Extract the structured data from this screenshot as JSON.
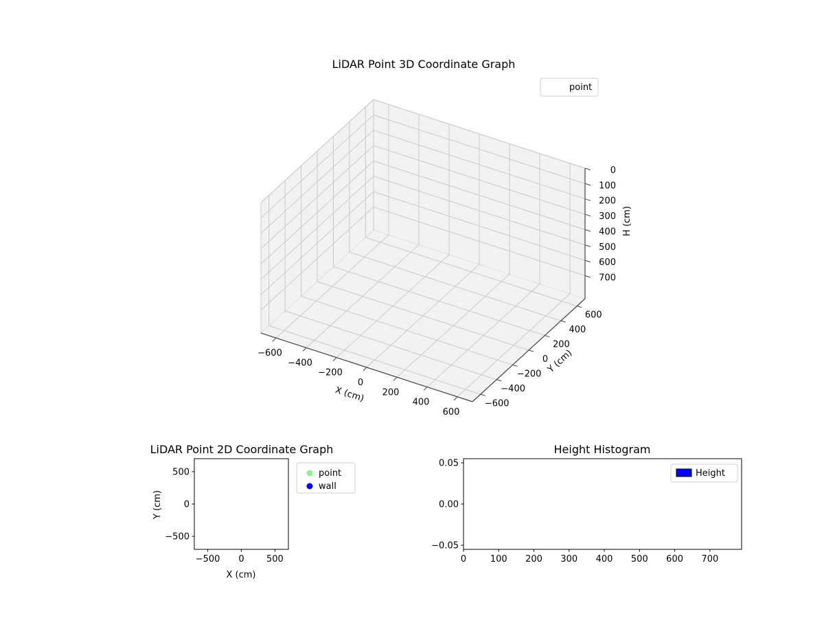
{
  "chart_data": [
    {
      "id": "plot3d",
      "type": "scatter",
      "projection": "3d",
      "title": "LiDAR Point 3D Coordinate Graph",
      "xlabel": "X (cm)",
      "ylabel": "Y (cm)",
      "zlabel": "H (cm)",
      "xlim": [
        -700,
        700
      ],
      "ylim": [
        -700,
        700
      ],
      "zlim": [
        0,
        850
      ],
      "zaxis_inverted": true,
      "xticks": {
        "values": [
          -600,
          -400,
          -200,
          0,
          200,
          400,
          600
        ],
        "labels": [
          "−600",
          "−400",
          "−200",
          "0",
          "200",
          "400",
          "600"
        ]
      },
      "yticks": {
        "values": [
          -600,
          -400,
          -200,
          0,
          200,
          400,
          600
        ],
        "labels": [
          "−600",
          "−400",
          "−200",
          "0",
          "200",
          "400",
          "600"
        ]
      },
      "zticks": {
        "values": [
          0,
          100,
          200,
          300,
          400,
          500,
          600,
          700
        ],
        "labels": [
          "0",
          "100",
          "200",
          "300",
          "400",
          "500",
          "600",
          "700"
        ]
      },
      "grid": true,
      "pane_color": "#f2f2f2",
      "grid_color": "#c9c9c9",
      "legend_position": "upper right outside",
      "legend": [
        {
          "label": "point",
          "marker": "none"
        }
      ],
      "series": [
        {
          "name": "point",
          "points": []
        }
      ]
    },
    {
      "id": "plot2d",
      "type": "scatter",
      "title": "LiDAR Point 2D Coordinate Graph",
      "xlabel": "X (cm)",
      "ylabel": "Y (cm)",
      "xlim": [
        -700,
        700
      ],
      "ylim": [
        -700,
        700
      ],
      "xticks": {
        "values": [
          -500,
          0,
          500
        ],
        "labels": [
          "−500",
          "0",
          "500"
        ]
      },
      "yticks": {
        "values": [
          -500,
          0,
          500
        ],
        "labels": [
          "−500",
          "0",
          "500"
        ]
      },
      "grid": false,
      "legend_position": "outside right",
      "legend": [
        {
          "label": "point",
          "marker": "circle",
          "color": "#90EE90"
        },
        {
          "label": "wall",
          "marker": "circle",
          "color": "#0000FF"
        }
      ],
      "series": [
        {
          "name": "point",
          "color": "#90EE90",
          "points": []
        },
        {
          "name": "wall",
          "color": "#0000FF",
          "points": []
        }
      ]
    },
    {
      "id": "histogram",
      "type": "bar",
      "title": "Height Histogram",
      "xlabel": "",
      "ylabel": "",
      "xlim": [
        0,
        790
      ],
      "ylim": [
        -0.055,
        0.055
      ],
      "xticks": {
        "values": [
          0,
          100,
          200,
          300,
          400,
          500,
          600,
          700
        ],
        "labels": [
          "0",
          "100",
          "200",
          "300",
          "400",
          "500",
          "600",
          "700"
        ]
      },
      "yticks": {
        "values": [
          -0.05,
          0,
          0.05
        ],
        "labels": [
          "−0.05",
          "0.00",
          "0.05"
        ]
      },
      "grid": false,
      "legend_position": "upper right",
      "legend": [
        {
          "label": "Height",
          "marker": "rect",
          "color": "#0000FF"
        }
      ],
      "values": []
    }
  ]
}
